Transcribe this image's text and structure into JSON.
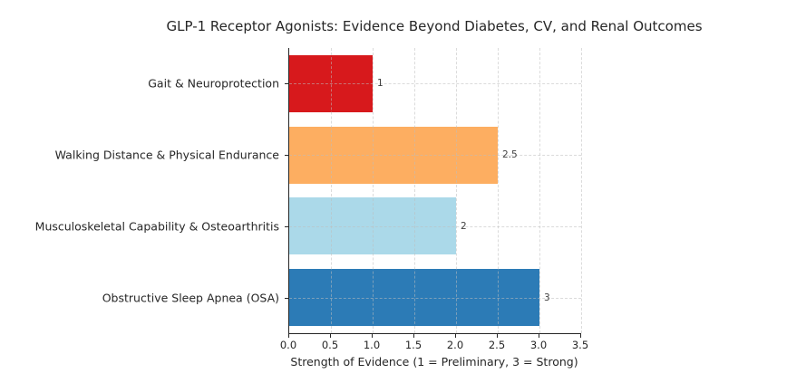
{
  "chart_data": {
    "type": "bar",
    "orientation": "horizontal",
    "title": "GLP-1 Receptor Agonists: Evidence Beyond Diabetes, CV, and Renal Outcomes",
    "categories": [
      "Gait & Neuroprotection",
      "Walking Distance & Physical Endurance",
      "Musculoskeletal Capability & Osteoarthritis",
      "Obstructive Sleep Apnea (OSA)"
    ],
    "values": [
      1,
      2.5,
      2,
      3
    ],
    "value_labels": [
      "1",
      "2.5",
      "2",
      "3"
    ],
    "bar_colors": [
      "#d7191c",
      "#fdae61",
      "#abd9e9",
      "#2c7bb6"
    ],
    "xlabel": "Strength of Evidence (1 = Preliminary, 3 = Strong)",
    "ylabel": "",
    "xlim": [
      0,
      3.5
    ],
    "xticks": [
      0,
      0.5,
      1,
      1.5,
      2,
      2.5,
      3,
      3.5
    ],
    "xtick_labels": [
      "0.0",
      "0.5",
      "1.0",
      "1.5",
      "2.0",
      "2.5",
      "3.0",
      "3.5"
    ],
    "grid": true,
    "grid_style": "dashed",
    "legend": false,
    "text_color": "#262626",
    "value_label_color": "#404040"
  }
}
